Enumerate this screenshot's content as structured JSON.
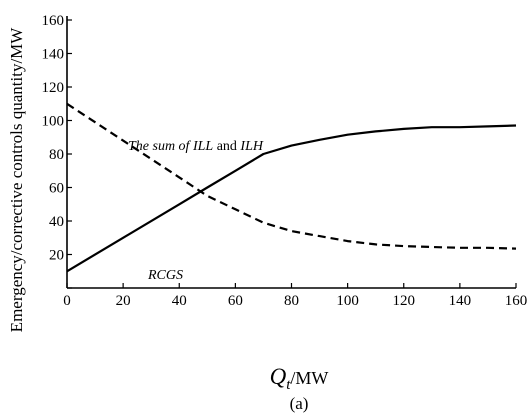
{
  "chart_data": {
    "type": "line",
    "xlabel": {
      "main": "Q",
      "sub": "t",
      "unit": "/MW"
    },
    "ylabel": "Emergency/corrective controls quantity/MW",
    "xlim": [
      0,
      160
    ],
    "ylim": [
      0,
      160
    ],
    "xticks": [
      "0",
      "20",
      "40",
      "60",
      "80",
      "100",
      "120",
      "140",
      "160"
    ],
    "yticks": [
      "0",
      "20",
      "40",
      "60",
      "80",
      "100",
      "120",
      "140",
      "160"
    ],
    "grid": false,
    "series": [
      {
        "name": "RCGS",
        "style": "solid",
        "color": "#000000",
        "x": [
          0,
          20,
          40,
          50,
          60,
          70,
          80,
          90,
          100,
          110,
          120,
          130,
          140,
          150,
          160
        ],
        "y": [
          10,
          30,
          50,
          60,
          70,
          80,
          85,
          88.5,
          91.5,
          93.5,
          95,
          96,
          96,
          96.5,
          97
        ]
      },
      {
        "name": "The sum of ILL and ILH",
        "style": "dashed",
        "color": "#000000",
        "x": [
          0,
          10,
          20,
          30,
          40,
          50,
          60,
          70,
          80,
          90,
          100,
          110,
          120,
          130,
          140,
          150,
          160
        ],
        "y": [
          110,
          99,
          88,
          77,
          66,
          55,
          47,
          39,
          34,
          31,
          28,
          26,
          25,
          24.5,
          24,
          24,
          23.5
        ]
      }
    ],
    "annotations": {
      "dashed": {
        "italic_1": "The sum of ILL",
        "plain": " and ",
        "italic_2": "ILH"
      },
      "solid": "RCGS"
    },
    "caption": "(a)"
  }
}
